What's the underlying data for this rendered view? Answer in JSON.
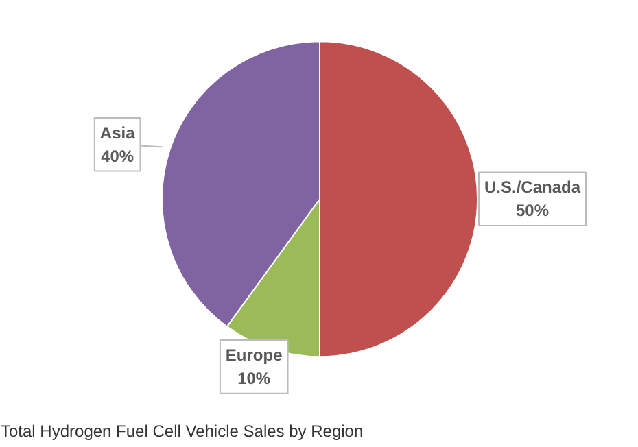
{
  "chart_data": {
    "type": "pie",
    "title": "Total Hydrogen Fuel Cell Vehicle Sales by Region",
    "categories": [
      "U.S./Canada",
      "Europe",
      "Asia"
    ],
    "values": [
      50,
      10,
      40
    ],
    "colors": [
      "#c0504d",
      "#9bbb59",
      "#8064a2"
    ],
    "value_labels": [
      "50%",
      "10%",
      "40%"
    ]
  }
}
